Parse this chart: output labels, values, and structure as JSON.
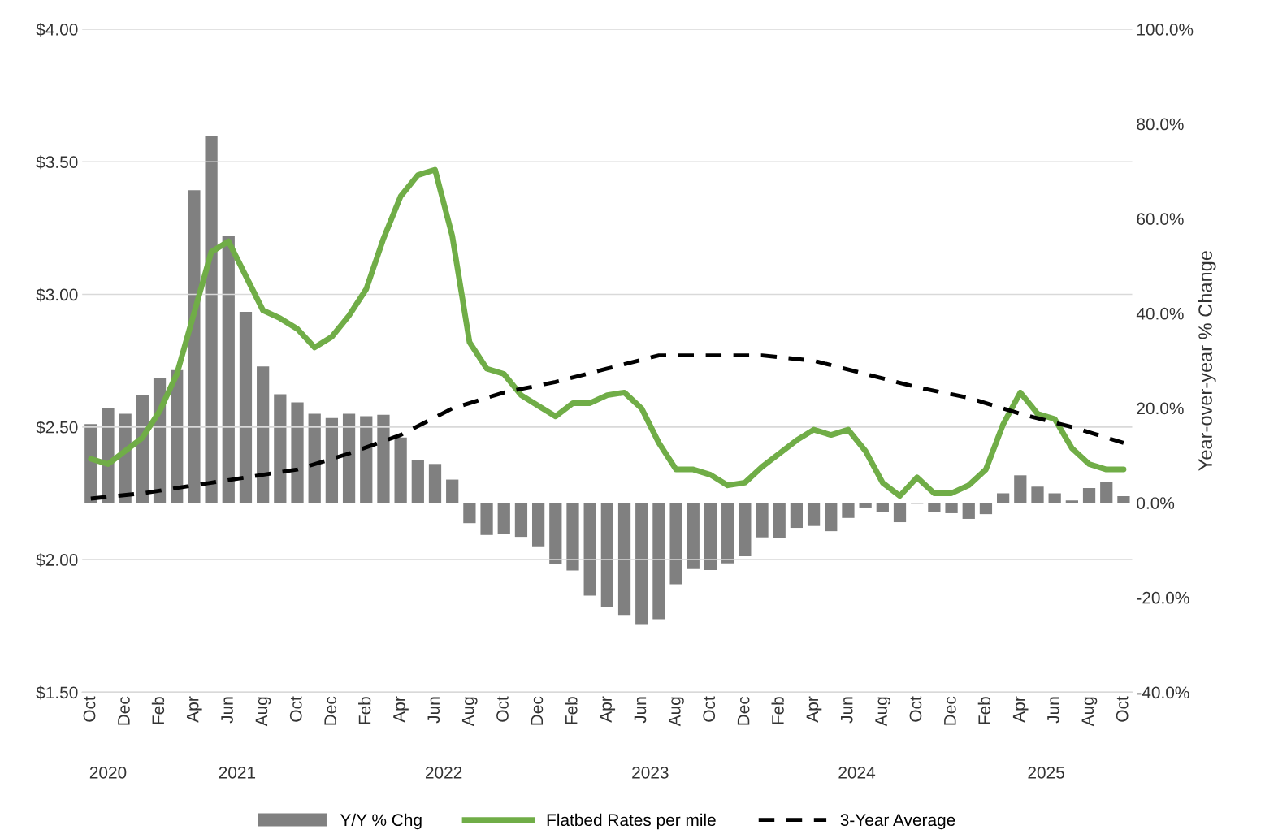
{
  "chart_data": {
    "type": "bar",
    "x": [
      "2020-10",
      "2020-11",
      "2020-12",
      "2021-01",
      "2021-02",
      "2021-03",
      "2021-04",
      "2021-05",
      "2021-06",
      "2021-07",
      "2021-08",
      "2021-09",
      "2021-10",
      "2021-11",
      "2021-12",
      "2022-01",
      "2022-02",
      "2022-03",
      "2022-04",
      "2022-05",
      "2022-06",
      "2022-07",
      "2022-08",
      "2022-09",
      "2022-10",
      "2022-11",
      "2022-12",
      "2023-01",
      "2023-02",
      "2023-03",
      "2023-04",
      "2023-05",
      "2023-06",
      "2023-07",
      "2023-08",
      "2023-09",
      "2023-10",
      "2023-11",
      "2023-12",
      "2024-01",
      "2024-02",
      "2024-03",
      "2024-04",
      "2024-05",
      "2024-06",
      "2024-07",
      "2024-08",
      "2024-09",
      "2024-10",
      "2024-11",
      "2024-12",
      "2025-01",
      "2025-02",
      "2025-03",
      "2025-04",
      "2025-05",
      "2025-06",
      "2025-07",
      "2025-08",
      "2025-09",
      "2025-10"
    ],
    "series": [
      {
        "name": "Y/Y % Chg",
        "axis": "y2",
        "color": "#808080",
        "values": [
          16.6,
          20.1,
          18.8,
          22.7,
          26.3,
          28.0,
          66.0,
          77.5,
          56.3,
          40.3,
          28.8,
          22.9,
          21.2,
          18.8,
          17.9,
          18.8,
          18.3,
          18.6,
          13.8,
          9.0,
          8.2,
          4.9,
          -4.3,
          -6.8,
          -6.5,
          -7.2,
          -9.2,
          -13.0,
          -14.3,
          -19.6,
          -22.0,
          -23.7,
          -25.8,
          -24.6,
          -17.2,
          -14.0,
          -14.2,
          -12.8,
          -11.3,
          -7.3,
          -7.5,
          -5.3,
          -4.9,
          -6.0,
          -3.2,
          -1.0,
          -2.0,
          -4.1,
          -0.2,
          -1.9,
          -2.2,
          -3.4,
          -2.4,
          2.0,
          5.8,
          3.4,
          2.0,
          0.5,
          3.1,
          4.4,
          1.4
        ]
      },
      {
        "name": "Flatbed Rates per mile",
        "type": "line",
        "color": "#70ad47",
        "line_style": "solid",
        "values": [
          2.38,
          2.36,
          2.41,
          2.46,
          2.56,
          2.7,
          2.93,
          3.16,
          3.2,
          3.07,
          2.94,
          2.91,
          2.87,
          2.8,
          2.84,
          2.92,
          3.02,
          3.21,
          3.37,
          3.45,
          3.47,
          3.22,
          2.82,
          2.72,
          2.7,
          2.62,
          2.58,
          2.54,
          2.59,
          2.59,
          2.62,
          2.63,
          2.57,
          2.44,
          2.34,
          2.34,
          2.32,
          2.28,
          2.29,
          2.35,
          2.4,
          2.45,
          2.49,
          2.47,
          2.49,
          2.41,
          2.29,
          2.24,
          2.31,
          2.25,
          2.25,
          2.28,
          2.34,
          2.51,
          2.63,
          2.55,
          2.53,
          2.42,
          2.36,
          2.34,
          2.34
        ]
      },
      {
        "name": "3-Year Average",
        "type": "line",
        "color": "#000000",
        "line_style": "dashed",
        "x": [
          "2020-10",
          "2021-01",
          "2021-04",
          "2021-07",
          "2021-10",
          "2022-01",
          "2022-04",
          "2022-07",
          "2022-10",
          "2023-01",
          "2023-04",
          "2023-07",
          "2023-10",
          "2024-01",
          "2024-04",
          "2024-07",
          "2024-10",
          "2025-01",
          "2025-04",
          "2025-07",
          "2025-10"
        ],
        "values": [
          2.23,
          2.25,
          2.28,
          2.31,
          2.34,
          2.4,
          2.47,
          2.57,
          2.63,
          2.67,
          2.72,
          2.77,
          2.77,
          2.77,
          2.75,
          2.7,
          2.65,
          2.61,
          2.55,
          2.5,
          2.44
        ]
      }
    ],
    "xlim": [
      "2020-09-16",
      "2025-10-16"
    ],
    "xticks": [
      {
        "value": "2020-10",
        "label": "Oct"
      },
      {
        "value": "2020-12",
        "label": "Dec"
      },
      {
        "value": "2021-02",
        "label": "Feb"
      },
      {
        "value": "2021-04",
        "label": "Apr"
      },
      {
        "value": "2021-06",
        "label": "Jun"
      },
      {
        "value": "2021-08",
        "label": "Aug"
      },
      {
        "value": "2021-10",
        "label": "Oct"
      },
      {
        "value": "2021-12",
        "label": "Dec"
      },
      {
        "value": "2022-02",
        "label": "Feb"
      },
      {
        "value": "2022-04",
        "label": "Apr"
      },
      {
        "value": "2022-06",
        "label": "Jun"
      },
      {
        "value": "2022-08",
        "label": "Aug"
      },
      {
        "value": "2022-10",
        "label": "Oct"
      },
      {
        "value": "2022-12",
        "label": "Dec"
      },
      {
        "value": "2023-02",
        "label": "Feb"
      },
      {
        "value": "2023-04",
        "label": "Apr"
      },
      {
        "value": "2023-06",
        "label": "Jun"
      },
      {
        "value": "2023-08",
        "label": "Aug"
      },
      {
        "value": "2023-10",
        "label": "Oct"
      },
      {
        "value": "2023-12",
        "label": "Dec"
      },
      {
        "value": "2024-02",
        "label": "Feb"
      },
      {
        "value": "2024-04",
        "label": "Apr"
      },
      {
        "value": "2024-06",
        "label": "Jun"
      },
      {
        "value": "2024-08",
        "label": "Aug"
      },
      {
        "value": "2024-10",
        "label": "Oct"
      },
      {
        "value": "2024-12",
        "label": "Dec"
      },
      {
        "value": "2025-02",
        "label": "Feb"
      },
      {
        "value": "2025-04",
        "label": "Apr"
      },
      {
        "value": "2025-06",
        "label": "Jun"
      },
      {
        "value": "2025-08",
        "label": "Aug"
      },
      {
        "value": "2025-10",
        "label": "Oct"
      }
    ],
    "ylim": [
      1.5,
      4.0
    ],
    "yticks": [
      {
        "value": 1.5,
        "label": "$1.50"
      },
      {
        "value": 2.0,
        "label": "$2.00"
      },
      {
        "value": 2.5,
        "label": "$2.50"
      },
      {
        "value": 3.0,
        "label": "$3.00"
      },
      {
        "value": 3.5,
        "label": "$3.50"
      },
      {
        "value": 4.0,
        "label": "$4.00"
      }
    ],
    "y2lim": [
      -40,
      100
    ],
    "y2ticks": [
      {
        "value": -40,
        "label": "-40.0%"
      },
      {
        "value": -20,
        "label": "-20.0%"
      },
      {
        "value": 0,
        "label": "0.0%"
      },
      {
        "value": 20,
        "label": "20.0%"
      },
      {
        "value": 40,
        "label": "40.0%"
      },
      {
        "value": 60,
        "label": "60.0%"
      },
      {
        "value": 80,
        "label": "80.0%"
      },
      {
        "value": 100,
        "label": "100.0%"
      }
    ],
    "y2label": "Year-over-year % Change",
    "x2lim": [
      "2020-09-16",
      "2025-10-16"
    ],
    "x2ticks": [
      {
        "value": "2020-11",
        "label": "2020"
      },
      {
        "value": "2021-06-16",
        "label": "2021"
      },
      {
        "value": "2022-06-16",
        "label": "2022"
      },
      {
        "value": "2023-06-16",
        "label": "2023"
      },
      {
        "value": "2024-06-16",
        "label": "2024"
      },
      {
        "value": "2025-05-16",
        "label": "2025"
      }
    ],
    "grid": "y",
    "legend": "bottom"
  }
}
